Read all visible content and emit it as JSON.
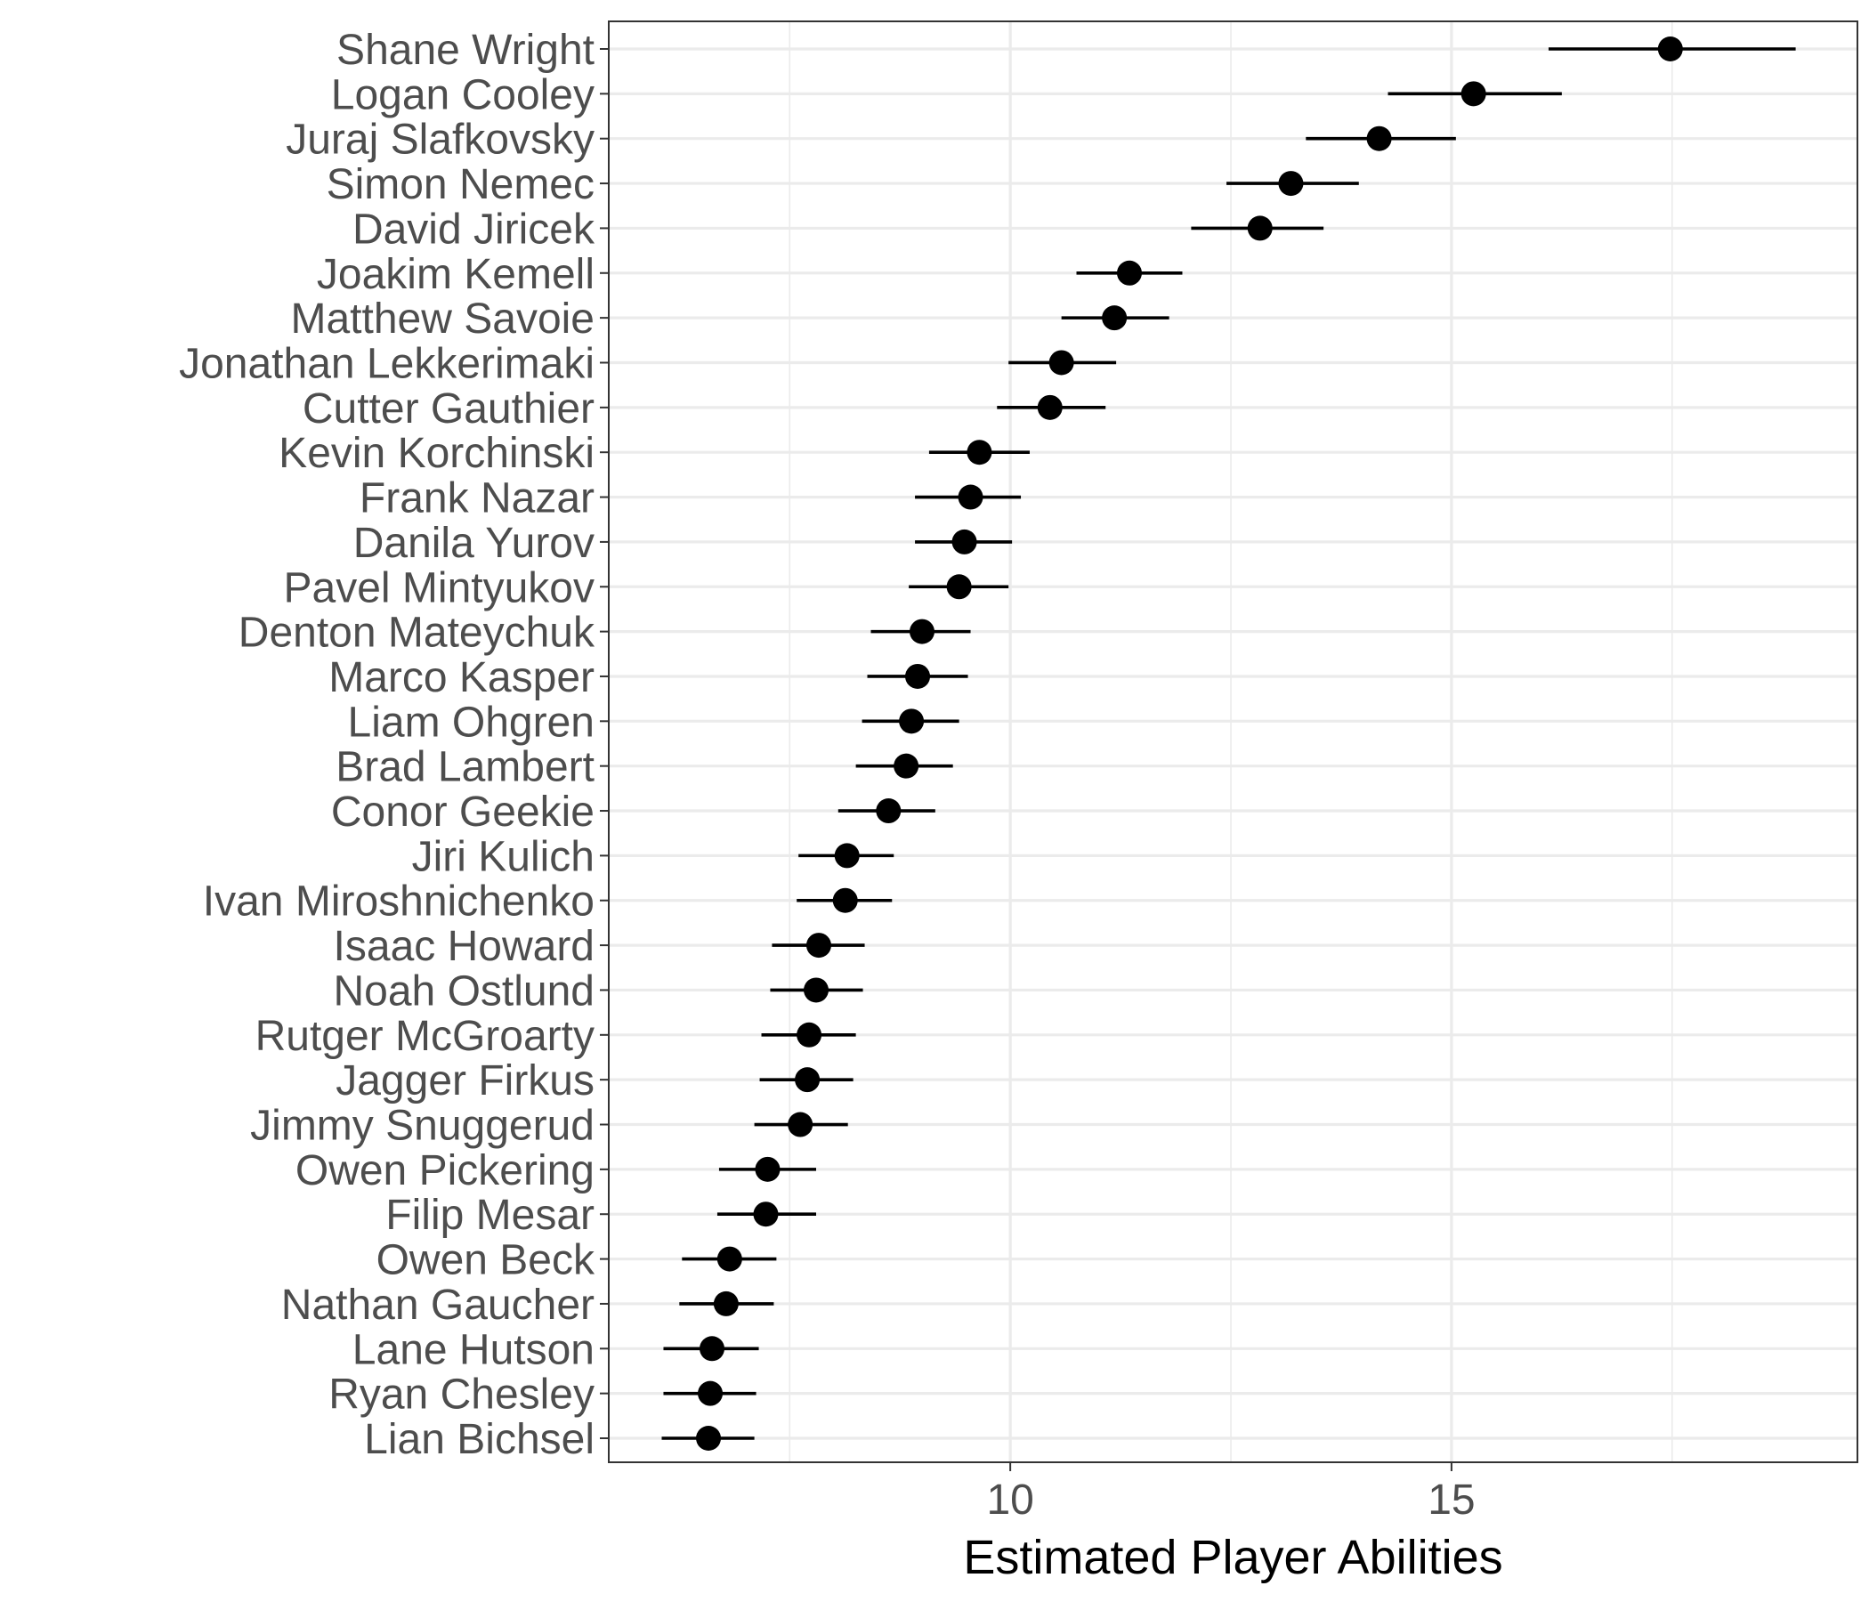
{
  "chart_data": {
    "type": "scatter",
    "title": "",
    "xlabel": "Estimated Player Abilities",
    "ylabel": "",
    "xlim": [
      5.45,
      19.6
    ],
    "x_ticks": [
      10,
      15
    ],
    "x_tick_labels": [
      "10",
      "15"
    ],
    "grid": true,
    "theme": "black-white",
    "categories": [
      "Shane Wright",
      "Logan Cooley",
      "Juraj Slafkovsky",
      "Simon Nemec",
      "David Jiricek",
      "Joakim Kemell",
      "Matthew Savoie",
      "Jonathan Lekkerimaki",
      "Cutter Gauthier",
      "Kevin Korchinski",
      "Frank Nazar",
      "Danila Yurov",
      "Pavel Mintyukov",
      "Denton Mateychuk",
      "Marco Kasper",
      "Liam Ohgren",
      "Brad Lambert",
      "Conor Geekie",
      "Jiri Kulich",
      "Ivan Miroshnichenko",
      "Isaac Howard",
      "Noah Ostlund",
      "Rutger McGroarty",
      "Jagger Firkus",
      "Jimmy Snuggerud",
      "Owen Pickering",
      "Filip Mesar",
      "Owen Beck",
      "Nathan Gaucher",
      "Lane Hutson",
      "Ryan Chesley",
      "Lian Bichsel"
    ],
    "series": [
      {
        "values": [
          17.48,
          15.25,
          14.18,
          13.18,
          12.83,
          11.35,
          11.18,
          10.58,
          10.45,
          9.65,
          9.55,
          9.48,
          9.42,
          9.0,
          8.95,
          8.88,
          8.82,
          8.62,
          8.15,
          8.13,
          7.83,
          7.8,
          7.72,
          7.7,
          7.62,
          7.25,
          7.23,
          6.82,
          6.78,
          6.62,
          6.6,
          6.58
        ],
        "lower": [
          16.1,
          14.28,
          13.35,
          12.45,
          12.05,
          10.75,
          10.58,
          9.98,
          9.85,
          9.08,
          8.92,
          8.92,
          8.85,
          8.42,
          8.38,
          8.32,
          8.25,
          8.05,
          7.6,
          7.58,
          7.3,
          7.28,
          7.18,
          7.16,
          7.1,
          6.7,
          6.68,
          6.28,
          6.25,
          6.07,
          6.07,
          6.05
        ],
        "upper": [
          18.9,
          16.25,
          15.05,
          13.95,
          13.55,
          11.95,
          11.8,
          11.2,
          11.08,
          10.22,
          10.12,
          10.02,
          9.98,
          9.55,
          9.52,
          9.42,
          9.35,
          9.15,
          8.68,
          8.66,
          8.35,
          8.33,
          8.25,
          8.22,
          8.16,
          7.8,
          7.8,
          7.35,
          7.32,
          7.15,
          7.12,
          7.1
        ]
      }
    ]
  }
}
